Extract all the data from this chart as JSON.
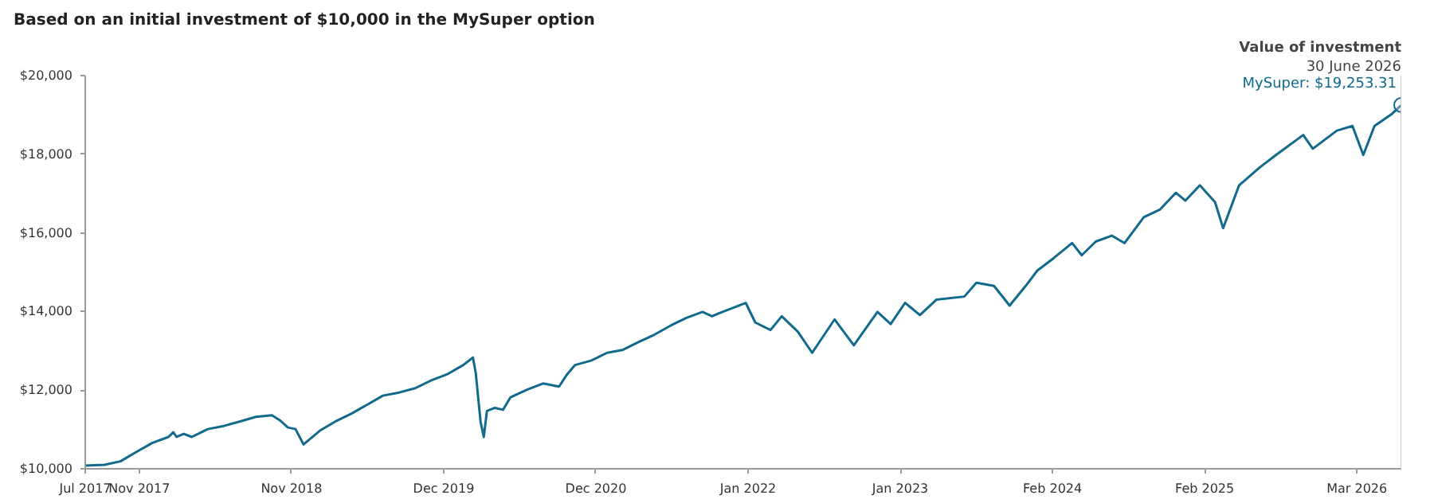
{
  "chart_data": {
    "type": "line",
    "title": "Based on an initial investment of $10,000 in the MySuper option",
    "x": [
      "2017-07-01",
      "2017-08-18",
      "2017-09-27",
      "2017-11-06",
      "2017-12-16",
      "2018-01-25",
      "2018-02-06",
      "2018-02-14",
      "2018-03-04",
      "2018-03-24",
      "2018-05-03",
      "2018-06-12",
      "2018-07-21",
      "2018-08-31",
      "2018-10-10",
      "2018-10-29",
      "2018-11-19",
      "2018-12-08",
      "2018-12-28",
      "2019-02-07",
      "2019-03-17",
      "2019-04-26",
      "2019-06-05",
      "2019-07-14",
      "2019-08-24",
      "2019-10-03",
      "2019-11-12",
      "2019-12-21",
      "2020-01-31",
      "2020-02-24",
      "2020-03-02",
      "2020-03-14",
      "2020-03-22",
      "2020-03-30",
      "2020-04-19",
      "2020-05-09",
      "2020-05-28",
      "2020-07-08",
      "2020-08-17",
      "2020-09-26",
      "2020-10-16",
      "2020-11-05",
      "2020-12-15",
      "2021-01-24",
      "2021-03-03",
      "2021-04-12",
      "2021-05-22",
      "2021-07-01",
      "2021-08-10",
      "2021-09-19",
      "2021-10-13",
      "2021-10-29",
      "2022-01-05",
      "2022-01-29",
      "2022-03-08",
      "2022-04-05",
      "2022-05-15",
      "2022-06-20",
      "2022-08-15",
      "2022-10-02",
      "2022-11-30",
      "2023-01-02",
      "2023-02-07",
      "2023-03-16",
      "2023-04-26",
      "2023-07-05",
      "2023-08-04",
      "2023-09-17",
      "2023-10-26",
      "2023-12-05",
      "2024-01-03",
      "2024-02-12",
      "2024-03-30",
      "2024-04-23",
      "2024-05-28",
      "2024-07-07",
      "2024-08-08",
      "2024-09-25",
      "2024-11-04",
      "2024-12-14",
      "2025-01-07",
      "2025-02-12",
      "2025-03-22",
      "2025-04-11",
      "2025-05-21",
      "2025-07-12",
      "2025-08-21",
      "2025-10-28",
      "2025-11-21",
      "2026-01-20",
      "2026-02-28",
      "2026-03-27",
      "2026-04-24",
      "2026-06-07",
      "2026-06-30"
    ],
    "series": [
      {
        "color": "#11698c",
        "values": [
          10080,
          10100,
          10190,
          10430,
          10660,
          10810,
          10930,
          10810,
          10890,
          10810,
          11010,
          11090,
          11200,
          11320,
          11360,
          11240,
          11050,
          11010,
          10620,
          10970,
          11200,
          11400,
          11630,
          11860,
          11940,
          12050,
          12250,
          12400,
          12640,
          12830,
          12440,
          11200,
          10810,
          11470,
          11550,
          11500,
          11820,
          12010,
          12170,
          12090,
          12400,
          12640,
          12750,
          12950,
          13020,
          13220,
          13410,
          13640,
          13840,
          13990,
          13880,
          13950,
          14220,
          13720,
          13530,
          13880,
          13490,
          12950,
          13800,
          13140,
          13990,
          13680,
          14220,
          13910,
          14300,
          14380,
          14730,
          14650,
          14150,
          14650,
          15040,
          15350,
          15740,
          15430,
          15780,
          15930,
          15740,
          16400,
          16590,
          17020,
          16820,
          17210,
          16780,
          16120,
          17210,
          17670,
          17980,
          18490,
          18140,
          18600,
          18720,
          17980,
          18720,
          19030,
          19253.31
        ]
      }
    ],
    "xlim": [
      "2017-07-01",
      "2026-06-30"
    ],
    "xticks": [
      {
        "value": "2017-07-01",
        "label": "Jul 2017"
      },
      {
        "value": "2017-11-13",
        "label": "Nov 2017"
      },
      {
        "value": "2018-11-28",
        "label": "Nov 2018"
      },
      {
        "value": "2019-12-13",
        "label": "Dec 2019"
      },
      {
        "value": "2020-12-27",
        "label": "Dec 2020"
      },
      {
        "value": "2022-01-11",
        "label": "Jan 2022"
      },
      {
        "value": "2023-01-26",
        "label": "Jan 2023"
      },
      {
        "value": "2024-02-10",
        "label": "Feb 2024"
      },
      {
        "value": "2025-02-24",
        "label": "Feb 2025"
      },
      {
        "value": "2026-03-11",
        "label": "Mar 2026"
      }
    ],
    "ylim": [
      10000,
      20000
    ],
    "yticks": [
      {
        "value": 10000,
        "label": "$10,000"
      },
      {
        "value": 12000,
        "label": "$12,000"
      },
      {
        "value": 14000,
        "label": "$14,000"
      },
      {
        "value": 16000,
        "label": "$16,000"
      },
      {
        "value": 18000,
        "label": "$18,000"
      },
      {
        "value": 20000,
        "label": "$20,000"
      }
    ],
    "grid": false,
    "marker": "none",
    "line_style": "solid",
    "ref_lines": [
      {
        "axis": "x",
        "value": "2026-06-30",
        "label": null,
        "color": "#c8c8c8"
      }
    ],
    "annotations": [
      "Value of investment",
      "30 June 2026",
      {
        "text": "MySuper: $19,253.31",
        "x": "2026-06-30",
        "y": 19253.31
      }
    ]
  }
}
